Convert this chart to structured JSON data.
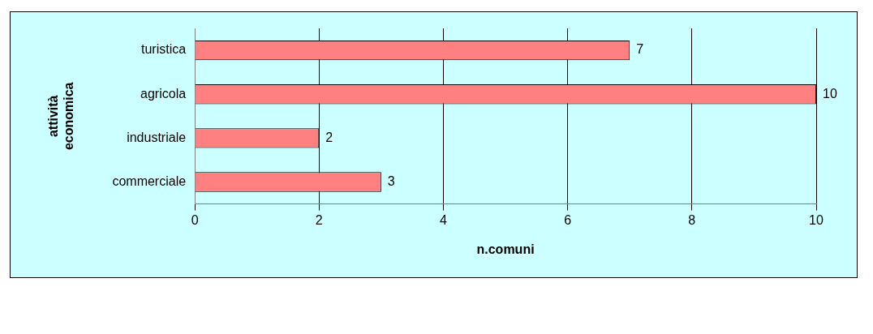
{
  "chart_data": {
    "type": "bar",
    "orientation": "horizontal",
    "categories": [
      "turistica",
      "agricola",
      "industriale",
      "commerciale"
    ],
    "values": [
      7,
      10,
      2,
      3
    ],
    "color": "#ff8080",
    "xlim": [
      0,
      10
    ],
    "xticks": [
      0,
      2,
      4,
      6,
      8,
      10
    ],
    "xlabel": "n.comuni",
    "ylabel": "attività economica",
    "grid": "x",
    "data_labels": true
  }
}
